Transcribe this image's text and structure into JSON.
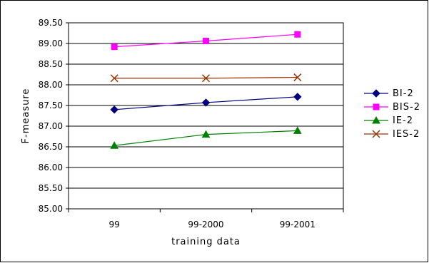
{
  "chart_data": {
    "type": "line",
    "xlabel": "training data",
    "ylabel": "F-measure",
    "categories": [
      "99",
      "99-2000",
      "99-2001"
    ],
    "ylim": [
      85.0,
      89.5
    ],
    "yticks": [
      "85.00",
      "85.50",
      "86.00",
      "86.50",
      "87.00",
      "87.50",
      "88.00",
      "88.50",
      "89.00",
      "89.50"
    ],
    "grid": true,
    "legend_position": "right",
    "series": [
      {
        "name": "BI-2",
        "values": [
          87.4,
          87.57,
          87.71
        ],
        "color": "#000080",
        "marker": "diamond"
      },
      {
        "name": "BIS-2",
        "values": [
          88.92,
          89.06,
          89.22
        ],
        "color": "#ff00ff",
        "marker": "square"
      },
      {
        "name": "IE-2",
        "values": [
          86.53,
          86.8,
          86.89
        ],
        "color": "#008000",
        "marker": "triangle"
      },
      {
        "name": "IES-2",
        "values": [
          88.16,
          88.16,
          88.18
        ],
        "color": "#993300",
        "marker": "x"
      }
    ]
  }
}
